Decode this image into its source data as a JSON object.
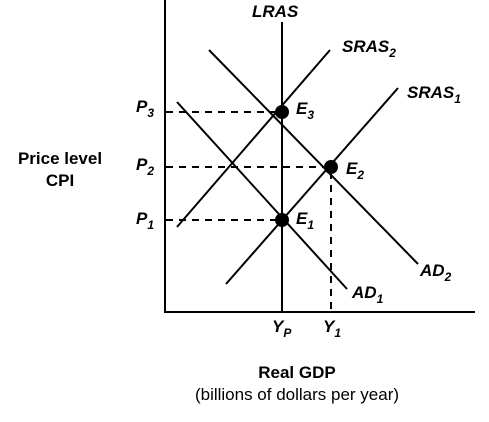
{
  "axes": {
    "y_label_line1": "Price level",
    "y_label_line2": "CPI",
    "x_label": "Real GDP",
    "x_sublabel": "(billions of dollars per year)"
  },
  "curves": {
    "lras": {
      "name": "LRAS"
    },
    "sras2": {
      "main": "SRAS",
      "sub": "2"
    },
    "sras1": {
      "main": "SRAS",
      "sub": "1"
    },
    "ad2": {
      "main": "AD",
      "sub": "2"
    },
    "ad1": {
      "main": "AD",
      "sub": "1"
    }
  },
  "price_levels": {
    "p3": {
      "main": "P",
      "sub": "3"
    },
    "p2": {
      "main": "P",
      "sub": "2"
    },
    "p1": {
      "main": "P",
      "sub": "1"
    }
  },
  "output_levels": {
    "yp": {
      "main": "Y",
      "sub": "P"
    },
    "y1": {
      "main": "Y",
      "sub": "1"
    }
  },
  "equilibria": {
    "e3": {
      "main": "E",
      "sub": "3"
    },
    "e2": {
      "main": "E",
      "sub": "2"
    },
    "e1": {
      "main": "E",
      "sub": "1"
    }
  }
}
